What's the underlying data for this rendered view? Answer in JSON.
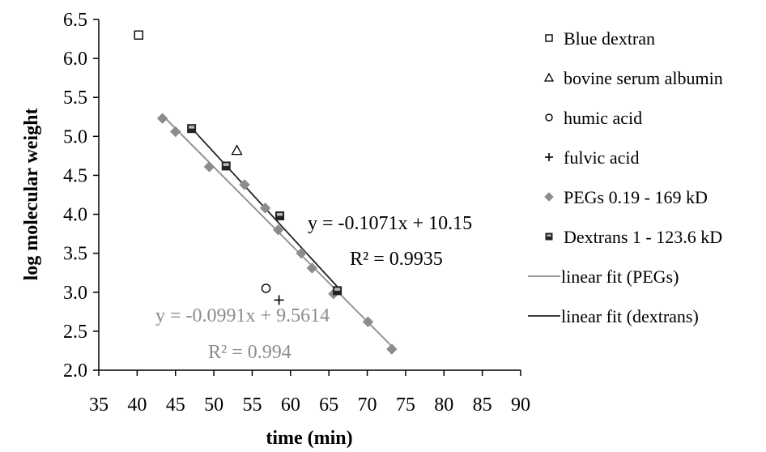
{
  "chart_data": {
    "type": "scatter",
    "xlabel": "time (min)",
    "ylabel": "log molecular weight",
    "xlim": [
      35,
      90
    ],
    "ylim": [
      2.0,
      6.5
    ],
    "xticks": [
      "35",
      "40",
      "45",
      "50",
      "55",
      "60",
      "65",
      "70",
      "75",
      "80",
      "85",
      "90"
    ],
    "yticks": [
      "2.0",
      "2.5",
      "3.0",
      "3.5",
      "4.0",
      "4.5",
      "5.0",
      "5.5",
      "6.0",
      "6.5"
    ],
    "grid": false,
    "legend_position": "right",
    "series": [
      {
        "name": "Blue dextran",
        "marker": "square-open",
        "color": "#000000",
        "points": [
          {
            "x": 40.2,
            "y": 6.3
          }
        ]
      },
      {
        "name": "bovine serum albumin",
        "marker": "triangle-open",
        "color": "#000000",
        "points": [
          {
            "x": 53.0,
            "y": 4.82
          }
        ]
      },
      {
        "name": "humic acid",
        "marker": "circle-open",
        "color": "#000000",
        "points": [
          {
            "x": 56.8,
            "y": 3.05
          }
        ]
      },
      {
        "name": "fulvic acid",
        "marker": "plus",
        "color": "#000000",
        "points": [
          {
            "x": 58.5,
            "y": 2.9
          }
        ]
      },
      {
        "name": "PEGs 0.19 - 169 kD",
        "marker": "diamond-filled",
        "color": "#8c8c8c",
        "points": [
          {
            "x": 43.3,
            "y": 5.23
          },
          {
            "x": 45.0,
            "y": 5.06
          },
          {
            "x": 49.4,
            "y": 4.61
          },
          {
            "x": 54.0,
            "y": 4.38
          },
          {
            "x": 56.7,
            "y": 4.08
          },
          {
            "x": 58.4,
            "y": 3.8
          },
          {
            "x": 61.4,
            "y": 3.5
          },
          {
            "x": 62.8,
            "y": 3.31
          },
          {
            "x": 65.6,
            "y": 2.98
          },
          {
            "x": 70.1,
            "y": 2.62
          },
          {
            "x": 73.2,
            "y": 2.27
          }
        ]
      },
      {
        "name": "Dextrans 1 - 123.6 kD",
        "marker": "square-halffilled",
        "color": "#222222",
        "points": [
          {
            "x": 47.1,
            "y": 5.1
          },
          {
            "x": 51.6,
            "y": 4.62
          },
          {
            "x": 58.6,
            "y": 3.98
          },
          {
            "x": 66.1,
            "y": 3.02
          }
        ]
      }
    ],
    "fits": [
      {
        "name": "linear fit (PEGs)",
        "color": "#8c8c8c",
        "slope": -0.0991,
        "intercept": 9.5614,
        "x_range": [
          43.3,
          73.2
        ],
        "equation": "y = -0.0991x + 9.5614",
        "r2": "R² = 0.994"
      },
      {
        "name": "linear fit (dextrans)",
        "color": "#222222",
        "slope": -0.1071,
        "intercept": 10.15,
        "x_range": [
          47.1,
          66.1
        ],
        "equation": "y = -0.1071x + 10.15",
        "r2": "R² = 0.9935"
      }
    ],
    "legend": [
      "Blue dextran",
      "bovine serum albumin",
      "humic acid",
      "fulvic acid",
      "PEGs 0.19 - 169 kD",
      "Dextrans 1 - 123.6 kD",
      "linear fit (PEGs)",
      "linear fit (dextrans)"
    ]
  }
}
